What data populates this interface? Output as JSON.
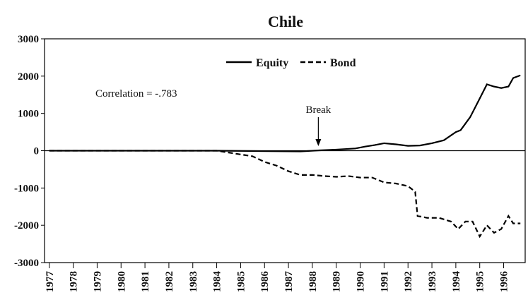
{
  "chart_data": {
    "type": "line",
    "title": "Chile",
    "annotations": [
      "Correlation = -.783",
      "Break"
    ],
    "break_x": 1988.25,
    "xlim": [
      1976.8,
      1996.9
    ],
    "xticks": [
      1977,
      1978,
      1979,
      1980,
      1981,
      1982,
      1983,
      1984,
      1985,
      1986,
      1987,
      1988,
      1989,
      1990,
      1991,
      1992,
      1993,
      1994,
      1995,
      1996
    ],
    "ylim": [
      -3000,
      3000
    ],
    "yticks": [
      -3000,
      -2000,
      -1000,
      0,
      1000,
      2000,
      3000
    ],
    "legend": "top",
    "series": [
      {
        "name": "Equity",
        "color": "#000000",
        "style": "solid",
        "x": [
          1977,
          1984,
          1987.5,
          1988.3,
          1989,
          1989.8,
          1990.2,
          1990.6,
          1991,
          1991.5,
          1992,
          1992.5,
          1993,
          1993.5,
          1994,
          1994.2,
          1994.6,
          1995.0,
          1995.3,
          1995.6,
          1995.9,
          1996.2,
          1996.4,
          1996.7
        ],
        "values": [
          0,
          0,
          -20,
          10,
          30,
          60,
          110,
          150,
          200,
          170,
          130,
          140,
          200,
          280,
          500,
          550,
          900,
          1400,
          1780,
          1720,
          1680,
          1720,
          1950,
          2020
        ]
      },
      {
        "name": "Bond",
        "color": "#000000",
        "style": "dashed",
        "x": [
          1977,
          1984,
          1984.5,
          1985,
          1985.5,
          1986,
          1986.5,
          1987,
          1987.5,
          1988,
          1988.5,
          1989,
          1989.5,
          1990,
          1990.5,
          1991,
          1991.5,
          1992,
          1992.3,
          1992.4,
          1992.8,
          1993.3,
          1993.8,
          1994.1,
          1994.4,
          1994.7,
          1995.0,
          1995.3,
          1995.6,
          1995.9,
          1996.2,
          1996.4,
          1996.7
        ],
        "values": [
          0,
          0,
          -50,
          -100,
          -150,
          -300,
          -400,
          -550,
          -650,
          -650,
          -680,
          -700,
          -680,
          -720,
          -720,
          -850,
          -880,
          -950,
          -1100,
          -1750,
          -1800,
          -1800,
          -1900,
          -2100,
          -1900,
          -1900,
          -2300,
          -2000,
          -2200,
          -2100,
          -1750,
          -1950,
          -1950
        ]
      }
    ]
  }
}
